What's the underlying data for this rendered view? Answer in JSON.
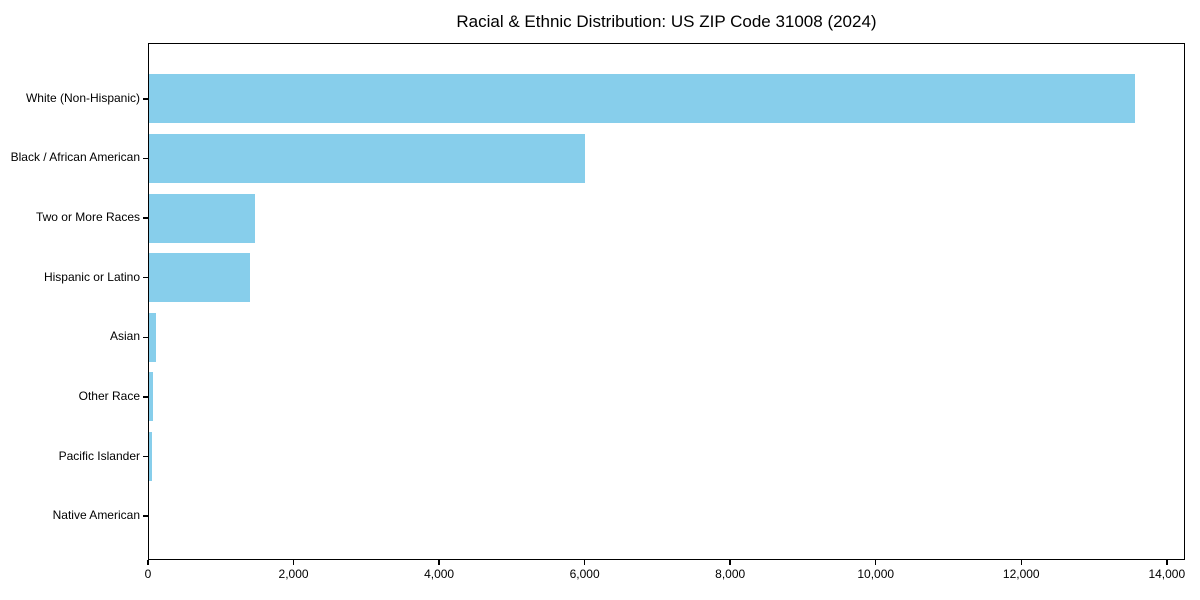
{
  "figure": {
    "background": "#ffffff"
  },
  "chart_data": {
    "type": "bar",
    "orientation": "horizontal",
    "title": "Racial & Ethnic Distribution: US ZIP Code 31008 (2024)",
    "categories": [
      "White (Non-Hispanic)",
      "Black / African American",
      "Two or More Races",
      "Hispanic or Latino",
      "Asian",
      "Other Race",
      "Pacific Islander",
      "Native American"
    ],
    "values": [
      13580,
      6000,
      1460,
      1390,
      90,
      60,
      40,
      0
    ],
    "bar_color": "#87CEEB",
    "axis_color": "#000000",
    "xlabel": "",
    "ylabel": "",
    "xlim": [
      0,
      14250
    ],
    "x_ticks": [
      0,
      2000,
      4000,
      6000,
      8000,
      10000,
      12000,
      14000
    ],
    "x_tick_labels": [
      "0",
      "2,000",
      "4,000",
      "6,000",
      "8,000",
      "10,000",
      "12,000",
      "14,000"
    ],
    "grid": false,
    "legend_position": "none"
  }
}
